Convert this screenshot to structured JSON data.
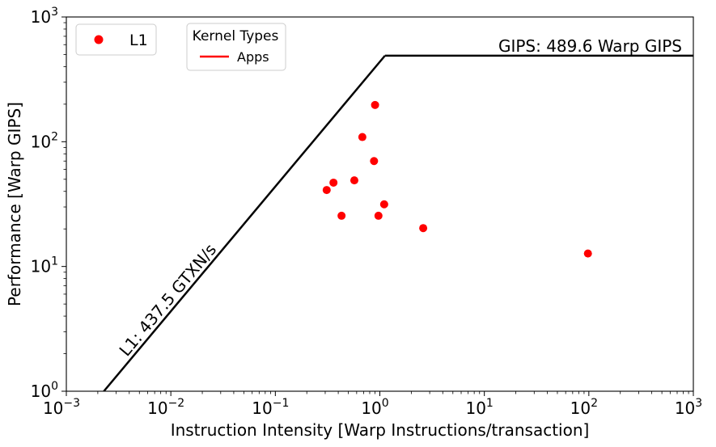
{
  "chart_data": {
    "type": "scatter",
    "title": "",
    "xlabel": "Instruction Intensity [Warp Instructions/transaction]",
    "ylabel": "Performance [Warp GIPS]",
    "xscale": "log",
    "yscale": "log",
    "xlim": [
      0.001,
      1000
    ],
    "ylim": [
      1,
      1000
    ],
    "x_ticks": [
      {
        "base": "10",
        "exp": "−3",
        "value": 0.001
      },
      {
        "base": "10",
        "exp": "−2",
        "value": 0.01
      },
      {
        "base": "10",
        "exp": "−1",
        "value": 0.1
      },
      {
        "base": "10",
        "exp": "0",
        "value": 1
      },
      {
        "base": "10",
        "exp": "1",
        "value": 10
      },
      {
        "base": "10",
        "exp": "2",
        "value": 100
      },
      {
        "base": "10",
        "exp": "3",
        "value": 1000
      }
    ],
    "y_ticks": [
      {
        "base": "10",
        "exp": "0",
        "value": 1
      },
      {
        "base": "10",
        "exp": "1",
        "value": 10
      },
      {
        "base": "10",
        "exp": "2",
        "value": 100
      },
      {
        "base": "10",
        "exp": "3",
        "value": 1000
      }
    ],
    "grid": false,
    "series": [
      {
        "name": "L1",
        "color": "#ff0000",
        "marker": "circle",
        "points": [
          {
            "x": 0.31,
            "y": 41
          },
          {
            "x": 0.36,
            "y": 47
          },
          {
            "x": 0.43,
            "y": 25.5
          },
          {
            "x": 0.57,
            "y": 49
          },
          {
            "x": 0.68,
            "y": 109
          },
          {
            "x": 0.88,
            "y": 70
          },
          {
            "x": 0.9,
            "y": 197
          },
          {
            "x": 0.97,
            "y": 25.5
          },
          {
            "x": 1.1,
            "y": 31.5
          },
          {
            "x": 2.6,
            "y": 20.3
          },
          {
            "x": 98,
            "y": 12.7
          }
        ]
      }
    ],
    "roofline": {
      "color": "#000000",
      "bandwidth_label": "L1: 437.5 GTXN/s",
      "bandwidth": 437.5,
      "peak_label": "GIPS: 489.6 Warp GIPS",
      "peak": 489.6
    },
    "legends": [
      {
        "placement": "top-left",
        "entries": [
          {
            "label": "L1",
            "marker": "circle",
            "color": "#ff0000"
          }
        ]
      },
      {
        "placement": "top-left",
        "title": "Kernel Types",
        "entries": [
          {
            "label": "Apps",
            "marker": "line",
            "color": "#ff0000"
          }
        ]
      }
    ]
  }
}
